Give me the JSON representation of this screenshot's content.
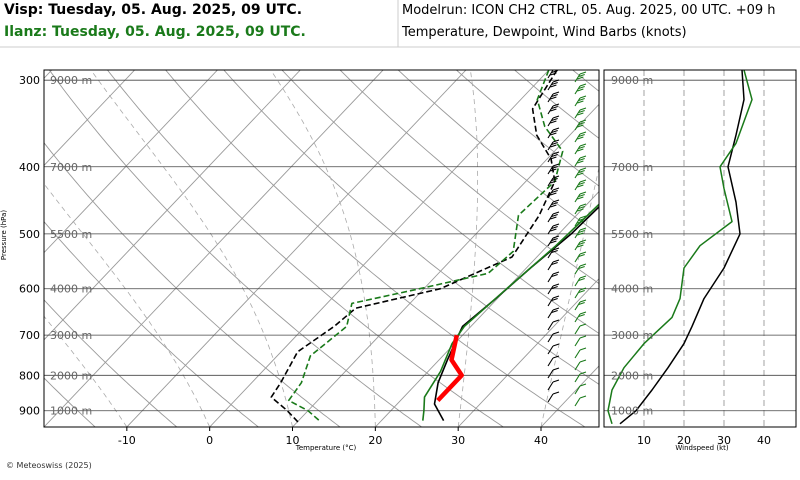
{
  "header": {
    "station1": "Visp: Tuesday, 05. Aug. 2025, 09 UTC.",
    "station2": "Ilanz: Tuesday, 05. Aug. 2025, 09 UTC.",
    "modelrun": "Modelrun: ICON CH2 CTRL, 05. Aug. 2025, 00 UTC. +09 h",
    "subtitle": "Temperature, Dewpoint, Wind Barbs (knots)"
  },
  "copyright": "© Meteoswiss (2025)",
  "colors": {
    "station1": "#000000",
    "station2": "#1a7a1a",
    "highlight": "#ff0000",
    "grid": "#999999",
    "header2": "#1a7a1a"
  },
  "chart_data": [
    {
      "type": "line",
      "name": "skew-t",
      "xlabel": "Temperature (°C)",
      "ylabel": "Pressure (hPa)",
      "xlim": [
        -20,
        47
      ],
      "ylim": [
        950,
        290
      ],
      "y_scale": "log",
      "x_ticks": [
        -10,
        0,
        10,
        20,
        30,
        40
      ],
      "p_ticks": [
        300,
        400,
        500,
        600,
        700,
        800,
        900
      ],
      "height_labels": [
        {
          "label": "9000 m",
          "p": 300
        },
        {
          "label": "7000 m",
          "p": 400
        },
        {
          "label": "5500 m",
          "p": 500
        },
        {
          "label": "4000 m",
          "p": 600
        },
        {
          "label": "3000 m",
          "p": 700
        },
        {
          "label": "2000 m",
          "p": 800
        },
        {
          "label": "1000 m",
          "p": 900
        }
      ],
      "series": [
        {
          "id": "temp1",
          "points": [
            [
              19,
              290
            ],
            [
              19.8,
              320
            ],
            [
              20.5,
              360
            ],
            [
              21.5,
              400
            ],
            [
              21.8,
              450
            ],
            [
              21.5,
              500
            ],
            [
              20.5,
              560
            ],
            [
              19.8,
              620
            ],
            [
              19,
              680
            ],
            [
              19.5,
              700
            ],
            [
              21,
              760
            ],
            [
              22.5,
              820
            ],
            [
              24.5,
              880
            ],
            [
              27.5,
              930
            ]
          ]
        },
        {
          "id": "dew1",
          "points": [
            [
              1,
              290
            ],
            [
              2.5,
              330
            ],
            [
              6,
              360
            ],
            [
              10.5,
              390
            ],
            [
              13.5,
              420
            ],
            [
              15.5,
              470
            ],
            [
              17,
              540
            ],
            [
              12,
              600
            ],
            [
              4,
              640
            ],
            [
              3.5,
              680
            ],
            [
              2,
              740
            ],
            [
              3.5,
              820
            ],
            [
              4,
              860
            ],
            [
              7.5,
              900
            ],
            [
              10.5,
              940
            ]
          ]
        },
        {
          "id": "temp2",
          "points": [
            [
              18.5,
              290
            ],
            [
              19.5,
              330
            ],
            [
              20.8,
              380
            ],
            [
              21.5,
              450
            ],
            [
              21,
              520
            ],
            [
              20,
              600
            ],
            [
              19.2,
              680
            ],
            [
              19.7,
              720
            ],
            [
              21.5,
              790
            ],
            [
              22.5,
              860
            ],
            [
              24,
              900
            ],
            [
              25,
              930
            ]
          ]
        },
        {
          "id": "dew2",
          "points": [
            [
              0,
              290
            ],
            [
              2,
              320
            ],
            [
              6,
              350
            ],
            [
              11,
              380
            ],
            [
              13.5,
              420
            ],
            [
              13,
              470
            ],
            [
              16.5,
              530
            ],
            [
              16,
              570
            ],
            [
              9.5,
              600
            ],
            [
              3,
              630
            ],
            [
              5,
              680
            ],
            [
              4,
              750
            ],
            [
              6,
              820
            ],
            [
              6.5,
              870
            ],
            [
              10,
              900
            ],
            [
              12.5,
              930
            ]
          ]
        },
        {
          "id": "parcel",
          "points": [
            [
              19.3,
              700
            ],
            [
              21.5,
              760
            ],
            [
              24.5,
              800
            ],
            [
              24.5,
              870
            ]
          ]
        }
      ]
    },
    {
      "type": "line",
      "name": "windspeed",
      "xlabel": "Windspeed (kt)",
      "xlim": [
        0,
        48
      ],
      "x_ticks": [
        10,
        20,
        30,
        40
      ],
      "series": [
        {
          "id": "ws1",
          "points": [
            [
              34.5,
              290
            ],
            [
              35,
              320
            ],
            [
              33,
              360
            ],
            [
              31,
              400
            ],
            [
              33,
              450
            ],
            [
              34,
              500
            ],
            [
              30,
              560
            ],
            [
              25,
              620
            ],
            [
              22,
              680
            ],
            [
              20,
              720
            ],
            [
              16,
              780
            ],
            [
              12,
              840
            ],
            [
              8,
              900
            ],
            [
              4,
              940
            ]
          ]
        },
        {
          "id": "ws2",
          "points": [
            [
              35,
              290
            ],
            [
              37,
              320
            ],
            [
              33,
              370
            ],
            [
              29,
              400
            ],
            [
              30,
              430
            ],
            [
              32,
              480
            ],
            [
              24,
              520
            ],
            [
              20,
              560
            ],
            [
              19,
              620
            ],
            [
              17,
              660
            ],
            [
              10,
              720
            ],
            [
              5,
              780
            ],
            [
              2,
              840
            ],
            [
              1,
              900
            ],
            [
              2,
              940
            ]
          ]
        }
      ]
    }
  ]
}
